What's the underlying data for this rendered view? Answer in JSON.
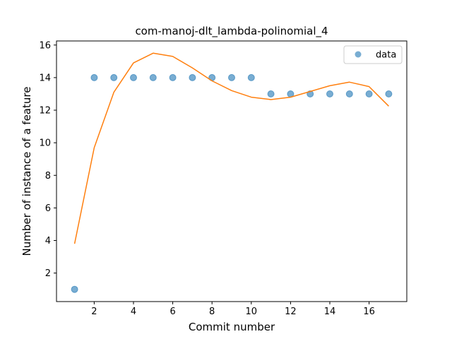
{
  "chart_data": {
    "type": "scatter",
    "title": "com-manoj-dlt_lambda-polinomial_4",
    "xlabel": "Commit number",
    "ylabel": "Number of instance of a feature",
    "xlim": [
      0.08,
      17.92
    ],
    "ylim": [
      0.25,
      16.25
    ],
    "xticks": [
      2,
      4,
      6,
      8,
      10,
      12,
      14,
      16
    ],
    "yticks": [
      2,
      4,
      6,
      8,
      10,
      12,
      14,
      16
    ],
    "legend": {
      "position": "top-right",
      "entries": [
        "data"
      ]
    },
    "grid": false,
    "series": [
      {
        "name": "data",
        "kind": "scatter",
        "color": "#1f77b4",
        "x": [
          1,
          2,
          3,
          4,
          5,
          6,
          7,
          8,
          9,
          10,
          11,
          12,
          13,
          14,
          15,
          16,
          17
        ],
        "y": [
          1,
          14,
          14,
          14,
          14,
          14,
          14,
          14,
          14,
          14,
          13,
          13,
          13,
          13,
          13,
          13,
          13
        ]
      },
      {
        "kind": "line",
        "color": "#ff7f0e",
        "x": [
          1,
          2,
          3,
          4,
          5,
          6,
          7,
          8,
          9,
          10,
          11,
          12,
          13,
          14,
          15,
          16,
          17
        ],
        "y": [
          3.8,
          9.7,
          13.1,
          14.9,
          15.5,
          15.3,
          14.6,
          13.8,
          13.2,
          12.8,
          12.65,
          12.8,
          13.15,
          13.5,
          13.72,
          13.45,
          12.25
        ]
      }
    ]
  }
}
